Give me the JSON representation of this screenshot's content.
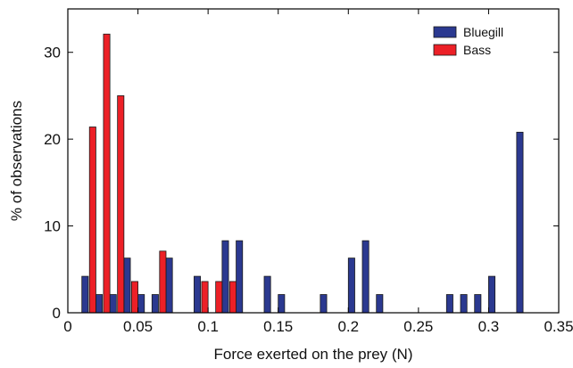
{
  "chart_data": {
    "type": "bar",
    "xlabel": "Force exerted on the prey (N)",
    "ylabel": "% of observations",
    "xlim": [
      0,
      0.35
    ],
    "ylim": [
      0,
      35
    ],
    "xticks": [
      0,
      0.05,
      0.1,
      0.15,
      0.2,
      0.25,
      0.3,
      0.35
    ],
    "xtick_labels": [
      "0",
      "0.05",
      "0.1",
      "0.15",
      "0.2",
      "0.25",
      "0.3",
      "0.35"
    ],
    "yticks": [
      0,
      10,
      20,
      30
    ],
    "ytick_labels": [
      "0",
      "10",
      "20",
      "30"
    ],
    "legend_position": "top-right",
    "grid": false,
    "series": [
      {
        "name": "Bluegill",
        "color": "#2b3990",
        "x": [
          0.01,
          0.02,
          0.03,
          0.04,
          0.05,
          0.06,
          0.07,
          0.09,
          0.11,
          0.12,
          0.14,
          0.15,
          0.18,
          0.2,
          0.21,
          0.22,
          0.27,
          0.28,
          0.29,
          0.3,
          0.32
        ],
        "values": [
          4.2,
          2.1,
          2.1,
          6.3,
          2.1,
          2.1,
          6.3,
          4.2,
          8.3,
          8.3,
          4.2,
          2.1,
          2.1,
          6.3,
          8.3,
          2.1,
          2.1,
          2.1,
          2.1,
          4.2,
          20.8
        ]
      },
      {
        "name": "Bass",
        "color": "#ec2027",
        "x": [
          0.02,
          0.03,
          0.04,
          0.05,
          0.07,
          0.1,
          0.11,
          0.12
        ],
        "values": [
          21.4,
          32.1,
          25.0,
          3.6,
          7.1,
          3.6,
          3.6,
          3.6
        ]
      }
    ]
  }
}
